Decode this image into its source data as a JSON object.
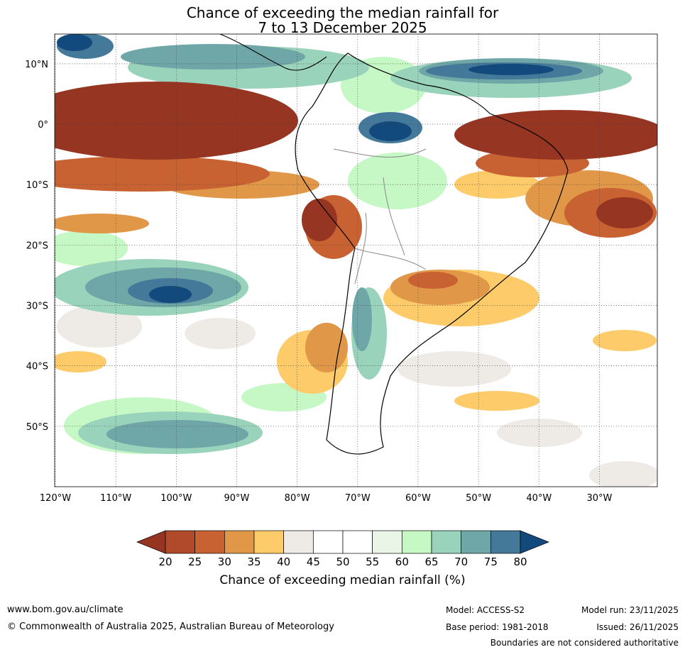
{
  "title": {
    "line1": "Chance of exceeding the median rainfall for",
    "line2": "7 to 13 December 2025"
  },
  "map": {
    "lat_labels": [
      "10°N",
      "0°",
      "10°S",
      "20°S",
      "30°S",
      "40°S",
      "50°S"
    ],
    "lon_labels": [
      "120°W",
      "110°W",
      "100°W",
      "90°W",
      "80°W",
      "70°W",
      "60°W",
      "50°W",
      "40°W",
      "30°W"
    ],
    "grid": true,
    "region": "South America and surrounding oceans"
  },
  "colorbar": {
    "title": "Chance of exceeding median rainfall (%)",
    "ticks": [
      "20",
      "25",
      "30",
      "35",
      "40",
      "45",
      "50",
      "55",
      "60",
      "65",
      "70",
      "75",
      "80"
    ],
    "colors": [
      "#963522",
      "#b04a2b",
      "#c96232",
      "#e09848",
      "#fecb6a",
      "#eeebe6",
      "#ffffff",
      "#ffffff",
      "#eaf5e8",
      "#c5f8c5",
      "#9ad3bc",
      "#6fa7a8",
      "#45799a",
      "#134a7d"
    ],
    "extend": "both"
  },
  "footer": {
    "url": "www.bom.gov.au/climate",
    "copyright": "© Commonwealth of Australia 2025, Australian Bureau of Meteorology",
    "model": "Model: ACCESS-S2",
    "base_period": "Base period: 1981-2018",
    "model_run": "Model run: 23/11/2025",
    "issued": "Issued: 26/11/2025",
    "disclaimer": "Boundaries are not considered authoritative"
  }
}
